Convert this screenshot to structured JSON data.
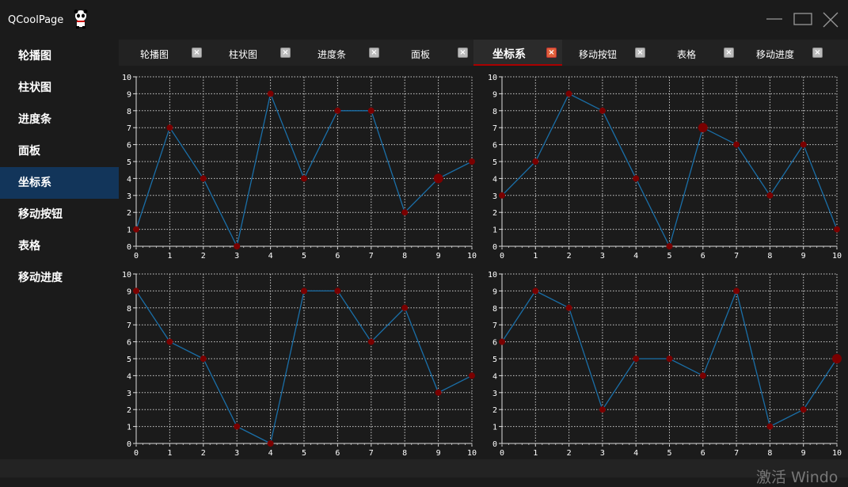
{
  "window": {
    "title": "QCoolPage",
    "controls": [
      "minimize-icon",
      "maximize-icon",
      "close-icon"
    ]
  },
  "sidebar": {
    "items": [
      {
        "label": "轮播图"
      },
      {
        "label": "柱状图"
      },
      {
        "label": "进度条"
      },
      {
        "label": "面板"
      },
      {
        "label": "坐标系",
        "active": true
      },
      {
        "label": "移动按钮"
      },
      {
        "label": "表格"
      },
      {
        "label": "移动进度"
      }
    ]
  },
  "tabs": [
    {
      "label": "轮播图"
    },
    {
      "label": "柱状图"
    },
    {
      "label": "进度条"
    },
    {
      "label": "面板"
    },
    {
      "label": "坐标系",
      "active": true
    },
    {
      "label": "移动按钮"
    },
    {
      "label": "表格"
    },
    {
      "label": "移动进度"
    }
  ],
  "watermark": "激活 Windo",
  "colors": {
    "line": "#1a6fa8",
    "point": "#7a0000",
    "active_side": "#12355a",
    "active_tab_border": "#aa0000"
  },
  "chart_data": [
    {
      "type": "line",
      "x": [
        0,
        1,
        2,
        3,
        4,
        5,
        6,
        7,
        8,
        9,
        10
      ],
      "y": [
        1,
        7,
        4,
        0,
        9,
        4,
        8,
        8,
        2,
        4,
        5
      ],
      "highlight_x": 9,
      "xlim": [
        0,
        10
      ],
      "ylim": [
        0,
        10
      ],
      "grid": true
    },
    {
      "type": "line",
      "x": [
        0,
        1,
        2,
        3,
        4,
        5,
        6,
        7,
        8,
        9,
        10
      ],
      "y": [
        3,
        5,
        9,
        8,
        4,
        0,
        7,
        6,
        3,
        6,
        1
      ],
      "highlight_x": 6,
      "xlim": [
        0,
        10
      ],
      "ylim": [
        0,
        10
      ],
      "grid": true
    },
    {
      "type": "line",
      "x": [
        0,
        1,
        2,
        3,
        4,
        5,
        6,
        7,
        8,
        9,
        10
      ],
      "y": [
        9,
        6,
        5,
        1,
        0,
        9,
        9,
        6,
        8,
        3,
        4
      ],
      "xlim": [
        0,
        10
      ],
      "ylim": [
        0,
        10
      ],
      "grid": true
    },
    {
      "type": "line",
      "x": [
        0,
        1,
        2,
        3,
        4,
        5,
        6,
        7,
        8,
        9,
        10
      ],
      "y": [
        6,
        9,
        8,
        2,
        5,
        5,
        4,
        9,
        1,
        2,
        5
      ],
      "highlight_x": 10,
      "xlim": [
        0,
        10
      ],
      "ylim": [
        0,
        10
      ],
      "grid": true
    }
  ]
}
